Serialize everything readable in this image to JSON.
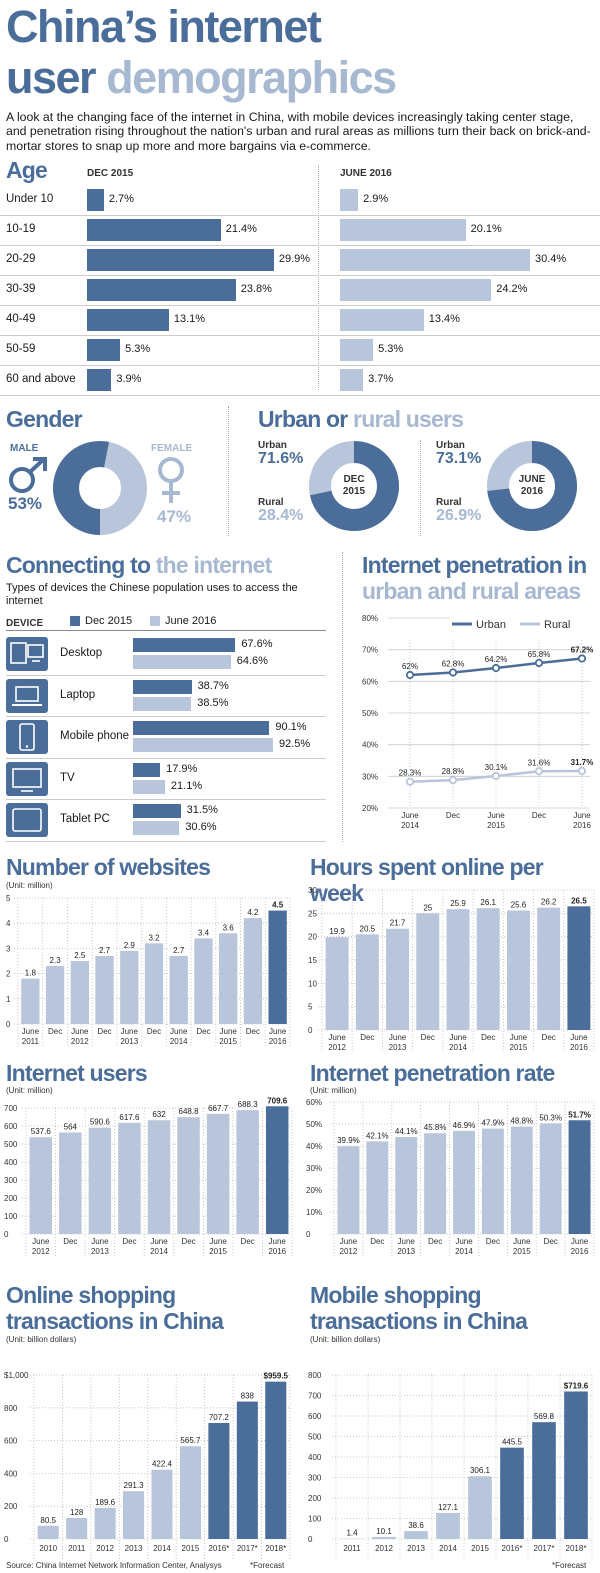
{
  "header": {
    "title_line1": "China’s internet",
    "title_line2_a": "user",
    "title_line2_b": "demographics",
    "intro": "A look at the changing face of the internet in China, with mobile devices increasingly taking center stage, and penetration rising throughout the nation's urban and rural areas as millions turn their back on brick-and-mortar stores to snap up more and more bargains via e-commerce."
  },
  "age": {
    "title": "Age",
    "col1": "DEC 2015",
    "col2": "JUNE 2016",
    "rows": [
      {
        "label": "Under 10",
        "dec2015": 2.7,
        "jun2016": 2.9,
        "dec_text": "2.7%",
        "jun_text": "2.9%"
      },
      {
        "label": "10-19",
        "dec2015": 21.4,
        "jun2016": 20.1,
        "dec_text": "21.4%",
        "jun_text": "20.1%"
      },
      {
        "label": "20-29",
        "dec2015": 29.9,
        "jun2016": 30.4,
        "dec_text": "29.9%",
        "jun_text": "30.4%"
      },
      {
        "label": "30-39",
        "dec2015": 23.8,
        "jun2016": 24.2,
        "dec_text": "23.8%",
        "jun_text": "24.2%"
      },
      {
        "label": "40-49",
        "dec2015": 13.1,
        "jun2016": 13.4,
        "dec_text": "13.1%",
        "jun_text": "13.4%"
      },
      {
        "label": "50-59",
        "dec2015": 5.3,
        "jun2016": 5.3,
        "dec_text": "5.3%",
        "jun_text": "5.3%"
      },
      {
        "label": "60 and above",
        "dec2015": 3.9,
        "jun2016": 3.7,
        "dec_text": "3.9%",
        "jun_text": "3.7%"
      }
    ]
  },
  "gender": {
    "title": "Gender",
    "male_label": "MALE",
    "male_value": "53%",
    "male_pct": 53,
    "female_label": "FEMALE",
    "female_value": "47%",
    "female_pct": 47
  },
  "urban_rural": {
    "title_a": "Urban or",
    "title_b": "rural users",
    "dec": {
      "urban_label": "Urban",
      "urban_value": "71.6%",
      "urban_pct": 71.6,
      "rural_label": "Rural",
      "rural_value": "28.4%",
      "rural_pct": 28.4,
      "center_line1": "DEC",
      "center_line2": "2015"
    },
    "jun": {
      "urban_label": "Urban",
      "urban_value": "73.1%",
      "urban_pct": 73.1,
      "rural_label": "Rural",
      "rural_value": "26.9%",
      "rural_pct": 26.9,
      "center_line1": "JUNE",
      "center_line2": "2016"
    }
  },
  "devices": {
    "title_a": "Connecting to",
    "title_b": "the internet",
    "subtitle": "Types of devices the Chinese population uses to access the internet",
    "col_label": "DEVICE",
    "legend_dec": "Dec 2015",
    "legend_jun": "June 2016",
    "rows": [
      {
        "label": "Desktop",
        "icon": "desktop-icon",
        "dec": 67.6,
        "jun": 64.6,
        "dec_text": "67.6%",
        "jun_text": "64.6%"
      },
      {
        "label": "Laptop",
        "icon": "laptop-icon",
        "dec": 38.7,
        "jun": 38.5,
        "dec_text": "38.7%",
        "jun_text": "38.5%"
      },
      {
        "label": "Mobile phone",
        "icon": "mobile-phone-icon",
        "dec": 90.1,
        "jun": 92.5,
        "dec_text": "90.1%",
        "jun_text": "92.5%"
      },
      {
        "label": "TV",
        "icon": "tv-icon",
        "dec": 17.9,
        "jun": 21.1,
        "dec_text": "17.9%",
        "jun_text": "21.1%"
      },
      {
        "label": "Tablet PC",
        "icon": "tablet-icon",
        "dec": 31.5,
        "jun": 30.6,
        "dec_text": "31.5%",
        "jun_text": "30.6%"
      }
    ]
  },
  "colors": {
    "dark": "#4a6e99",
    "light": "#b8c5db",
    "title_light": "#a7b8d1"
  },
  "chart_data": [
    {
      "id": "penetration-urban-rural",
      "type": "line",
      "title_a": "Internet penetration in",
      "title_b": "urban and rural areas",
      "x_top": [
        "June",
        "Dec",
        "June",
        "Dec",
        "June"
      ],
      "x_bottom": [
        "2014",
        "",
        "2015",
        "",
        "2016"
      ],
      "yticks": [
        "80%",
        "70%",
        "60%",
        "50%",
        "40%",
        "30%",
        "20%"
      ],
      "ylim": [
        20,
        80
      ],
      "series": [
        {
          "name": "Urban",
          "values": [
            62,
            62.8,
            64.2,
            65.8,
            67.2
          ],
          "labels": [
            "62%",
            "62.8%",
            "64.2%",
            "65.8%",
            "67.2%"
          ]
        },
        {
          "name": "Rural",
          "values": [
            28.3,
            28.8,
            30.1,
            31.6,
            31.7
          ],
          "labels": [
            "28.3%",
            "28.8%",
            "30.1%",
            "31.6%",
            "31.7%"
          ]
        }
      ],
      "legend": "top"
    },
    {
      "id": "number-of-websites",
      "type": "bar",
      "title": "Number of websites",
      "unit": "(Unit: million)",
      "x_top": [
        "June",
        "Dec",
        "June",
        "Dec",
        "June",
        "Dec",
        "June",
        "Dec",
        "June",
        "Dec",
        "June"
      ],
      "x_bottom": [
        "2011",
        "",
        "2012",
        "",
        "2013",
        "",
        "2014",
        "",
        "2015",
        "",
        "2016"
      ],
      "values": [
        1.8,
        2.3,
        2.5,
        2.7,
        2.9,
        3.2,
        2.7,
        3.4,
        3.6,
        4.2,
        4.5
      ],
      "labels": [
        "1.8",
        "2.3",
        "2.5",
        "2.7",
        "2.9",
        "3.2",
        "2.7",
        "3.4",
        "3.6",
        "4.2",
        "4.5"
      ],
      "yticks": [
        "5",
        "4",
        "3",
        "2",
        "1",
        "0"
      ],
      "ylim": [
        0,
        5
      ]
    },
    {
      "id": "hours-online",
      "type": "bar",
      "title": "Hours spent online per week",
      "x_top": [
        "June",
        "Dec",
        "June",
        "Dec",
        "June",
        "Dec",
        "June",
        "Dec",
        "June"
      ],
      "x_bottom": [
        "2012",
        "",
        "2013",
        "",
        "2014",
        "",
        "2015",
        "",
        "2016"
      ],
      "values": [
        19.9,
        20.5,
        21.7,
        25,
        25.9,
        26.1,
        25.6,
        26.2,
        26.5
      ],
      "labels": [
        "19.9",
        "20.5",
        "21.7",
        "25",
        "25.9",
        "26.1",
        "25.6",
        "26.2",
        "26.5"
      ],
      "yticks": [
        "30",
        "25",
        "20",
        "15",
        "10",
        "5",
        "0"
      ],
      "ylim": [
        0,
        30
      ]
    },
    {
      "id": "internet-users",
      "type": "bar",
      "title": "Internet users",
      "unit": "(Unit: million)",
      "x_top": [
        "June",
        "Dec",
        "June",
        "Dec",
        "June",
        "Dec",
        "June",
        "Dec",
        "June"
      ],
      "x_bottom": [
        "2012",
        "",
        "2013",
        "",
        "2014",
        "",
        "2015",
        "",
        "2016"
      ],
      "values": [
        537.6,
        564,
        590.6,
        617.6,
        632,
        648.8,
        667.7,
        688.3,
        709.6
      ],
      "labels": [
        "537.6",
        "564",
        "590.6",
        "617.6",
        "632",
        "648.8",
        "667.7",
        "688.3",
        "709.6"
      ],
      "yticks": [
        "700",
        "600",
        "500",
        "400",
        "300",
        "200",
        "100",
        "0"
      ],
      "ylim": [
        0,
        700
      ]
    },
    {
      "id": "penetration-rate",
      "type": "bar",
      "title": "Internet penetration rate",
      "unit": "(Unit: million)",
      "x_top": [
        "June",
        "Dec",
        "June",
        "Dec",
        "June",
        "Dec",
        "June",
        "Dec",
        "June"
      ],
      "x_bottom": [
        "2012",
        "",
        "2013",
        "",
        "2014",
        "",
        "2015",
        "",
        "2016"
      ],
      "values": [
        39.9,
        42.1,
        44.1,
        45.8,
        46.9,
        47.9,
        48.8,
        50.3,
        51.7
      ],
      "labels": [
        "39.9%",
        "42.1%",
        "44.1%",
        "45.8%",
        "46.9%",
        "47.9%",
        "48.8%",
        "50.3%",
        "51.7%"
      ],
      "yticks": [
        "60%",
        "50%",
        "40%",
        "30%",
        "20%",
        "10%",
        "0"
      ],
      "ylim": [
        0,
        60
      ]
    },
    {
      "id": "online-shopping",
      "type": "bar",
      "title_line1": "Online shopping",
      "title_line2": "transactions in China",
      "unit": "(Unit: billion dollars)",
      "categories": [
        "2010",
        "2011",
        "2012",
        "2013",
        "2014",
        "2015",
        "2016*",
        "2017*",
        "2018*"
      ],
      "values": [
        80.5,
        128,
        189.6,
        291.3,
        422.4,
        565.7,
        707.2,
        838,
        959.5
      ],
      "labels": [
        "80.5",
        "128",
        "189.6",
        "291.3",
        "422.4",
        "565.7",
        "707.2",
        "838",
        "$959.5"
      ],
      "yticks": [
        "$1,000",
        "800",
        "600",
        "400",
        "200",
        "0"
      ],
      "ylim": [
        0,
        1000
      ],
      "source": "Source: China Internet Network Information Center, Analysys",
      "footnote": "*Forecast"
    },
    {
      "id": "mobile-shopping",
      "type": "bar",
      "title_line1": "Mobile shopping",
      "title_line2": "transactions in China",
      "unit": "(Unit: billion dollars)",
      "categories": [
        "2011",
        "2012",
        "2013",
        "2014",
        "2015",
        "2016*",
        "2017*",
        "2018*"
      ],
      "values": [
        1.4,
        10.1,
        38.6,
        127.1,
        306.1,
        445.5,
        569.8,
        719.6
      ],
      "labels": [
        "1.4",
        "10.1",
        "38.6",
        "127.1",
        "306.1",
        "445.5",
        "569.8",
        "$719.6"
      ],
      "yticks": [
        "800",
        "700",
        "600",
        "500",
        "400",
        "300",
        "200",
        "100",
        "0"
      ],
      "ylim": [
        0,
        800
      ],
      "footnote": "*Forecast"
    }
  ]
}
